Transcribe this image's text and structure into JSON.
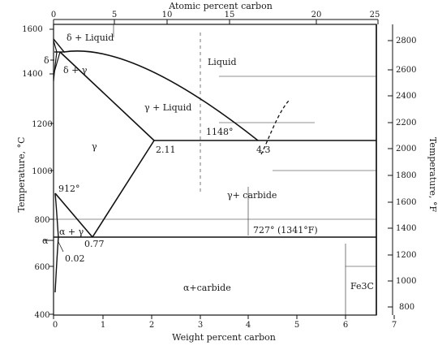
{
  "diagram": {
    "top_axis_title": "Atomic percent carbon",
    "bottom_axis_title": "Weight percent carbon",
    "left_axis_title": "Temperature, °C",
    "right_axis_title": "Temperature, °F",
    "top_ticks": [
      "0",
      "5",
      "10",
      "15",
      "20",
      "25"
    ],
    "bottom_ticks": [
      "0",
      "1",
      "2",
      "3",
      "4",
      "5",
      "6",
      "7"
    ],
    "left_ticks": [
      "1600",
      "1400",
      "1200",
      "1000",
      "800",
      "600",
      "400"
    ],
    "right_ticks": [
      "2800",
      "2600",
      "2400",
      "2200",
      "2000",
      "1800",
      "1600",
      "1400",
      "1200",
      "1000",
      "800"
    ],
    "regions": {
      "delta_liquid": "δ + Liquid",
      "delta": "δ",
      "delta_gamma": "δ + γ",
      "liquid": "Liquid",
      "gamma_liquid": "γ + Liquid",
      "gamma": "γ",
      "gamma_carbide": "γ+ carbide",
      "alpha_gamma": "α + γ",
      "alpha": "α",
      "alpha_carbide": "α+carbide",
      "fe3c": "Fe3C"
    },
    "annotations": {
      "eutectic_temp": "1148°",
      "eutectic_comp": "4.3",
      "gamma_max_solubility": "2.11",
      "a3_temp": "912°",
      "eutectoid_comp": "0.77",
      "eutectoid_temp": "727° (1341°F)",
      "alpha_max_solubility": "0.02"
    }
  }
}
